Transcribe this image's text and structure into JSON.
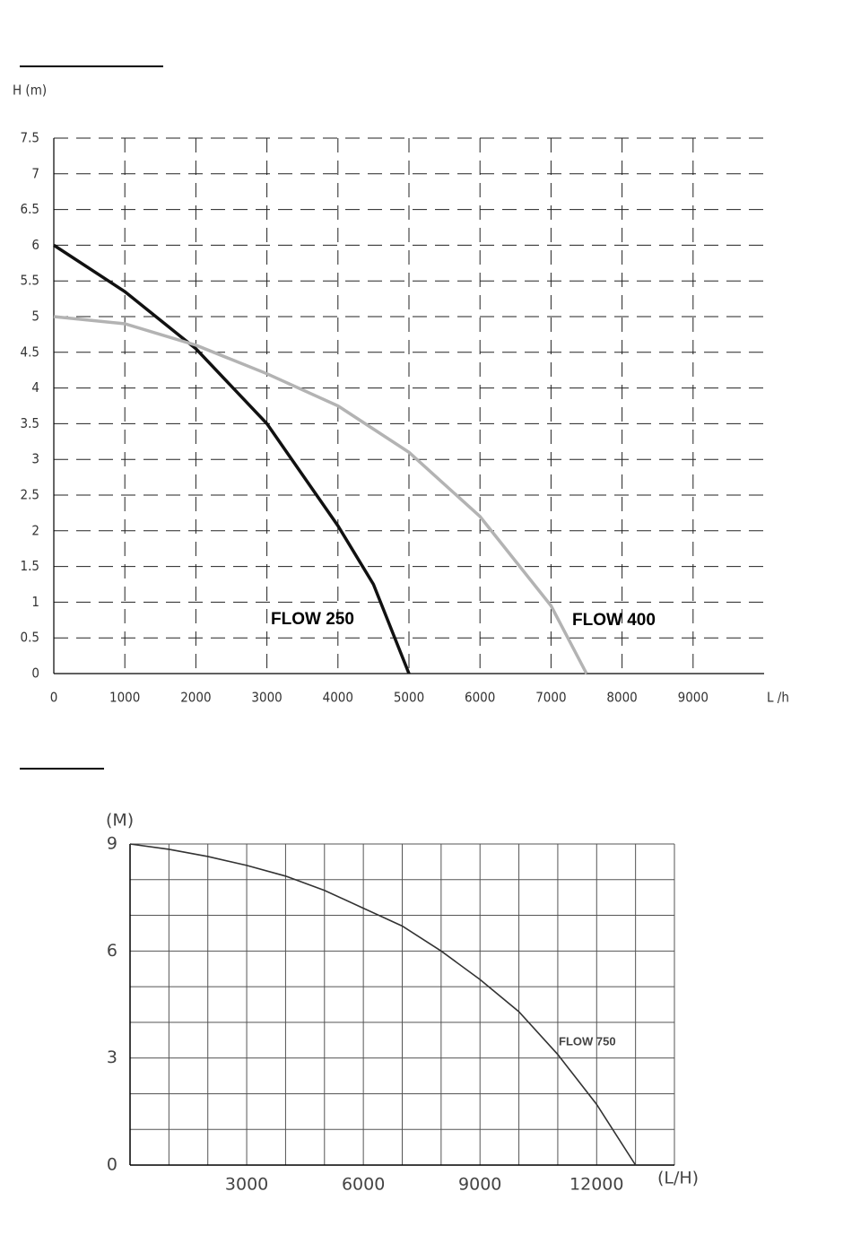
{
  "chart_data": [
    {
      "type": "line",
      "y_label": "H (m)",
      "x_label": "L /h",
      "xlim": [
        0,
        10000
      ],
      "xticks": [
        0,
        1000,
        2000,
        3000,
        4000,
        5000,
        6000,
        7000,
        8000,
        9000
      ],
      "ylim": [
        0,
        7.5
      ],
      "yticks": [
        0,
        0.5,
        1,
        1.5,
        2,
        2.5,
        3,
        3.5,
        4,
        4.5,
        5,
        5.5,
        6,
        6.5,
        7,
        7.5
      ],
      "grid": "dashed",
      "series": [
        {
          "name": "FLOW 250",
          "color": "#111111",
          "x": [
            0,
            1000,
            2000,
            3000,
            4000,
            4500,
            5000
          ],
          "values": [
            6,
            5.35,
            4.55,
            3.5,
            2.07,
            1.25,
            0
          ]
        },
        {
          "name": "FLOW 400",
          "color": "#b3b3b3",
          "x": [
            0,
            1000,
            2000,
            3000,
            4000,
            5000,
            6000,
            7000,
            7500
          ],
          "values": [
            5,
            4.9,
            4.6,
            4.2,
            3.75,
            3.1,
            2.2,
            0.95,
            0
          ]
        }
      ]
    },
    {
      "type": "line",
      "y_label": "(M)",
      "x_label": "(L/H)",
      "xlim": [
        0,
        14000
      ],
      "xticks": [
        3000,
        6000,
        9000,
        12000
      ],
      "ylim": [
        0,
        9
      ],
      "yticks": [
        0,
        3,
        6,
        9
      ],
      "grid": "solid",
      "xgrid": [
        0,
        1000,
        2000,
        3000,
        4000,
        5000,
        6000,
        7000,
        8000,
        9000,
        10000,
        11000,
        12000,
        13000,
        14000
      ],
      "ygrid": [
        0,
        1,
        2,
        3,
        4,
        5,
        6,
        7,
        8,
        9
      ],
      "series": [
        {
          "name": "FLOW 750",
          "color": "#333333",
          "x": [
            0,
            1000,
            2000,
            3000,
            4000,
            5000,
            6000,
            7000,
            8000,
            9000,
            10000,
            11000,
            12000,
            13000
          ],
          "values": [
            9,
            8.85,
            8.65,
            8.4,
            8.1,
            7.7,
            7.2,
            6.7,
            6,
            5.2,
            4.3,
            3.1,
            1.7,
            0
          ]
        }
      ]
    }
  ]
}
